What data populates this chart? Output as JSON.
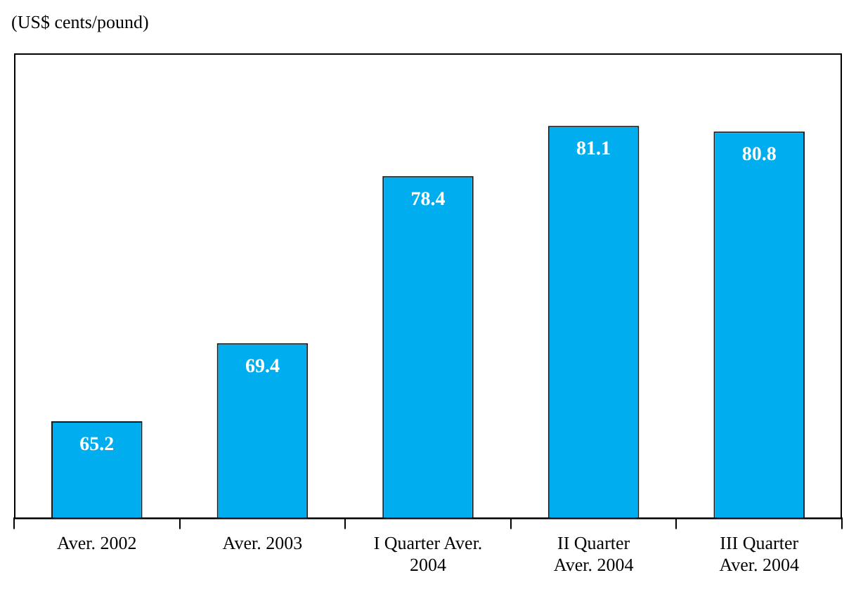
{
  "chart_data": {
    "type": "bar",
    "ylabel": "(US$ cents/pound)",
    "categories": [
      "Aver. 2002",
      "Aver. 2003",
      "I Quarter Aver. 2004",
      "II Quarter Aver. 2004",
      "III Quarter Aver. 2004"
    ],
    "values": [
      65.2,
      69.4,
      78.4,
      81.1,
      80.8
    ],
    "color": "#00aeef",
    "ylim": [
      60,
      85
    ],
    "tick_labels": "x",
    "data_labels": true,
    "grid": false,
    "legend": false
  }
}
